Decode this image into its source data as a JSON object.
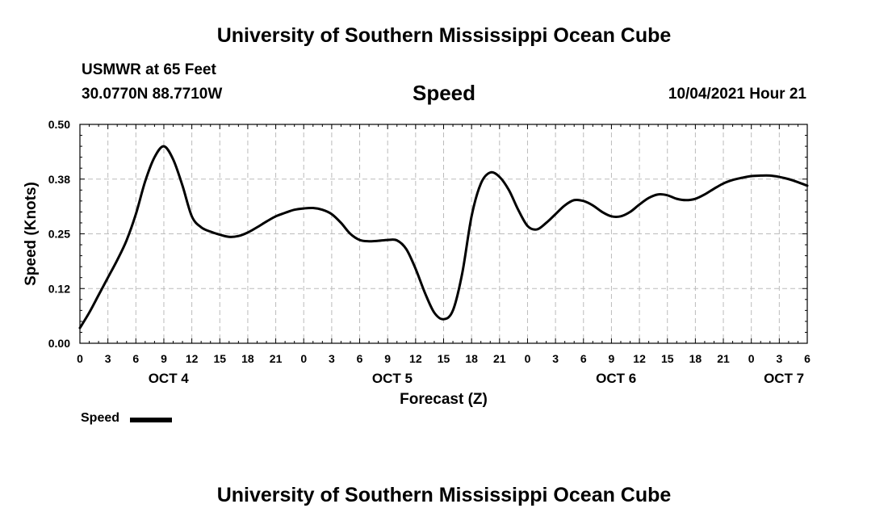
{
  "header": {
    "title": "University of Southern Mississippi Ocean Cube",
    "station": "USMWR at 65 Feet",
    "coordinates": "30.0770N  88.7710W",
    "chart_title": "Speed",
    "datetime": "10/04/2021 Hour 21"
  },
  "footer": {
    "title": "University of Southern Mississippi Ocean Cube"
  },
  "legend": {
    "label": "Speed",
    "color": "#000000"
  },
  "chart_data": {
    "type": "line",
    "title": "Speed",
    "xlabel": "Forecast (Z)",
    "ylabel": "Speed (Knots)",
    "xlim": [
      0,
      78
    ],
    "ylim": [
      0,
      0.5
    ],
    "yticks": [
      "0.00",
      "0.12",
      "0.25",
      "0.38",
      "0.50"
    ],
    "ytick_values": [
      0,
      0.125,
      0.25,
      0.375,
      0.5
    ],
    "xticks": [
      "0",
      "3",
      "6",
      "9",
      "12",
      "15",
      "18",
      "21",
      "0",
      "3",
      "6",
      "9",
      "12",
      "15",
      "18",
      "21",
      "0",
      "3",
      "6",
      "9",
      "12",
      "15",
      "18",
      "21",
      "0",
      "3",
      "6"
    ],
    "day_labels": [
      {
        "label": "OCT 4",
        "at": 9.5
      },
      {
        "label": "OCT 5",
        "at": 33.5
      },
      {
        "label": "OCT 6",
        "at": 57.5
      },
      {
        "label": "OCT 7",
        "at": 75.5
      }
    ],
    "grid": true,
    "legend_position": "bottom-left",
    "series": [
      {
        "name": "Speed",
        "color": "#000000",
        "x": [
          0,
          1,
          2,
          3,
          4,
          5,
          6,
          7,
          8,
          9,
          10,
          11,
          12,
          13,
          14,
          15,
          16,
          17,
          18,
          19,
          20,
          21,
          22,
          23,
          24,
          25,
          26,
          27,
          28,
          29,
          30,
          31,
          32,
          33,
          34,
          35,
          36,
          37,
          38,
          39,
          40,
          41,
          42,
          43,
          44,
          45,
          46,
          47,
          48,
          49,
          50,
          51,
          52,
          53,
          54,
          55,
          56,
          57,
          58,
          59,
          60,
          61,
          62,
          63,
          64,
          65,
          66,
          67,
          68,
          69,
          70,
          71,
          72,
          73,
          74,
          75,
          76,
          77,
          78
        ],
        "y": [
          0.035,
          0.07,
          0.11,
          0.15,
          0.19,
          0.235,
          0.295,
          0.37,
          0.425,
          0.45,
          0.42,
          0.36,
          0.29,
          0.265,
          0.255,
          0.248,
          0.243,
          0.245,
          0.253,
          0.265,
          0.278,
          0.29,
          0.298,
          0.305,
          0.308,
          0.309,
          0.305,
          0.295,
          0.275,
          0.25,
          0.236,
          0.233,
          0.234,
          0.236,
          0.235,
          0.215,
          0.17,
          0.115,
          0.07,
          0.055,
          0.075,
          0.16,
          0.29,
          0.365,
          0.39,
          0.38,
          0.35,
          0.305,
          0.268,
          0.26,
          0.275,
          0.295,
          0.315,
          0.327,
          0.325,
          0.315,
          0.3,
          0.29,
          0.29,
          0.3,
          0.317,
          0.332,
          0.34,
          0.338,
          0.33,
          0.327,
          0.33,
          0.34,
          0.353,
          0.365,
          0.373,
          0.378,
          0.382,
          0.383,
          0.383,
          0.38,
          0.375,
          0.368,
          0.36
        ]
      }
    ]
  }
}
